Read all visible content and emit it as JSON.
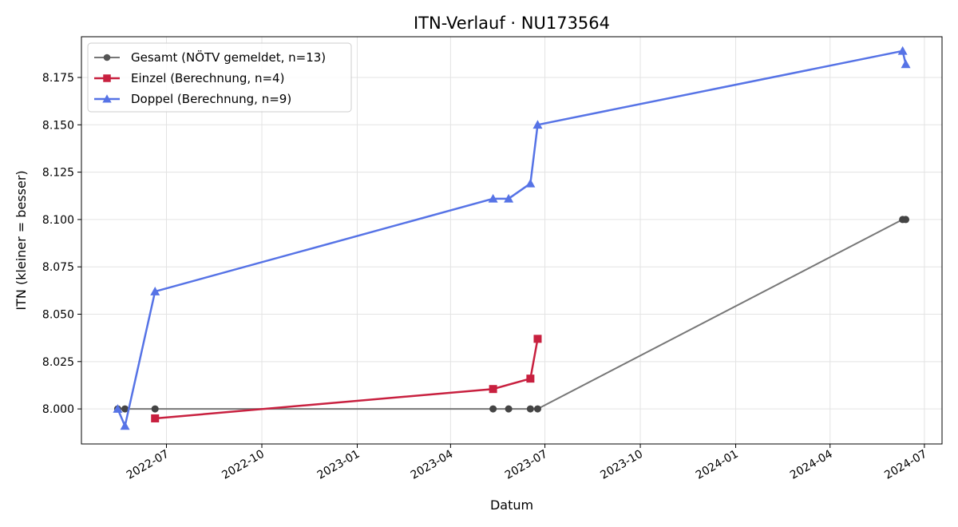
{
  "chart_data": {
    "type": "line",
    "title": "ITN-Verlauf · NU173564",
    "xlabel": "Datum",
    "ylabel": "ITN  (kleiner = besser)",
    "x_type": "date",
    "xlim": [
      "2022-04-10",
      "2024-07-18"
    ],
    "ylim": [
      7.9815,
      8.1965
    ],
    "y_ticks": [
      8.0,
      8.025,
      8.05,
      8.075,
      8.1,
      8.125,
      8.15,
      8.175
    ],
    "y_tick_labels": [
      "8.000",
      "8.025",
      "8.050",
      "8.075",
      "8.100",
      "8.125",
      "8.150",
      "8.175"
    ],
    "x_ticks": [
      "2022-07-01",
      "2022-10-01",
      "2023-01-01",
      "2023-04-01",
      "2023-07-01",
      "2023-10-01",
      "2024-01-01",
      "2024-04-01",
      "2024-07-01"
    ],
    "x_tick_labels": [
      "2022-07",
      "2022-10",
      "2023-01",
      "2023-04",
      "2023-07",
      "2023-10",
      "2024-01",
      "2024-04",
      "2024-07"
    ],
    "grid": true,
    "legend_position": "top-left",
    "series": [
      {
        "name": "Gesamt (NÖTV gemeldet, n=13)",
        "color": "#777777",
        "marker": "circle",
        "points": [
          {
            "x": "2022-05-15",
            "y": 8.0
          },
          {
            "x": "2022-05-22",
            "y": 8.0
          },
          {
            "x": "2022-06-20",
            "y": 8.0
          },
          {
            "x": "2023-05-12",
            "y": 8.0
          },
          {
            "x": "2023-05-27",
            "y": 8.0
          },
          {
            "x": "2023-06-17",
            "y": 8.0
          },
          {
            "x": "2023-06-24",
            "y": 8.0
          },
          {
            "x": "2024-06-10",
            "y": 8.1
          },
          {
            "x": "2024-06-13",
            "y": 8.1
          }
        ]
      },
      {
        "name": "Einzel (Berechnung, n=4)",
        "color": "#c8203f",
        "marker": "square",
        "points": [
          {
            "x": "2022-06-20",
            "y": 7.995
          },
          {
            "x": "2023-05-12",
            "y": 8.0105
          },
          {
            "x": "2023-06-17",
            "y": 8.016
          },
          {
            "x": "2023-06-24",
            "y": 8.037
          }
        ]
      },
      {
        "name": "Doppel (Berechnung, n=9)",
        "color": "#5673e6",
        "marker": "triangle",
        "points": [
          {
            "x": "2022-05-15",
            "y": 8.0
          },
          {
            "x": "2022-05-22",
            "y": 7.991
          },
          {
            "x": "2022-06-20",
            "y": 8.062
          },
          {
            "x": "2023-05-12",
            "y": 8.111
          },
          {
            "x": "2023-05-27",
            "y": 8.111
          },
          {
            "x": "2023-06-17",
            "y": 8.119
          },
          {
            "x": "2023-06-24",
            "y": 8.15
          },
          {
            "x": "2024-06-10",
            "y": 8.189
          },
          {
            "x": "2024-06-13",
            "y": 8.182
          }
        ]
      }
    ]
  }
}
